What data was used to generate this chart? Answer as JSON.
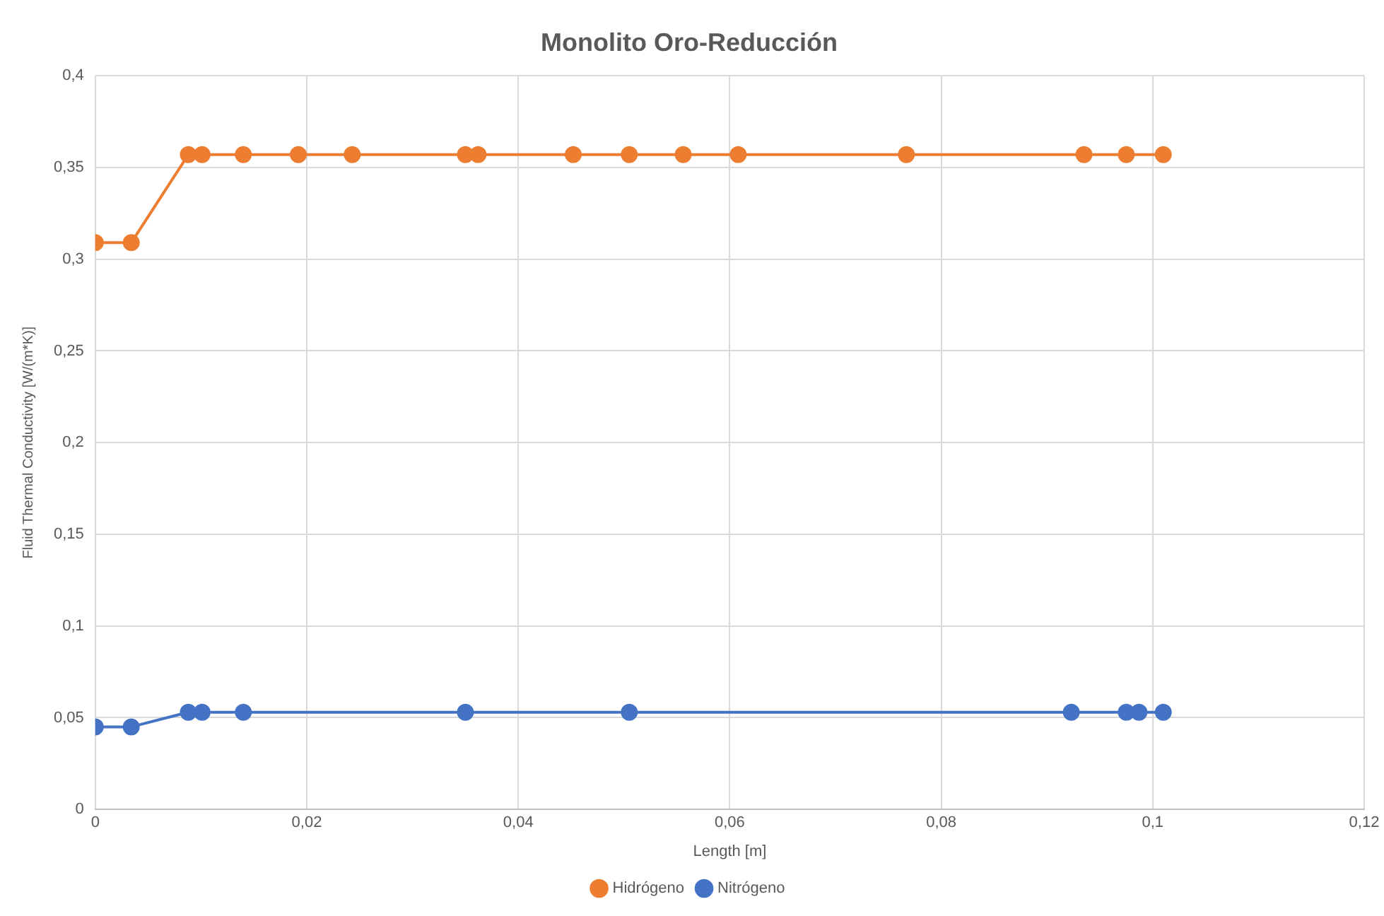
{
  "chart_data": {
    "type": "line",
    "title": "Monolito Oro-Reducción",
    "xlabel": "Length [m]",
    "ylabel": "Fluid Thermal Conductivity [W/(m*K)]",
    "series": [
      {
        "name": "Hidrógeno",
        "color": "#ed7d31",
        "x": [
          0,
          0.0034,
          0.0088,
          0.0101,
          0.014,
          0.0192,
          0.0243,
          0.035,
          0.0362,
          0.0452,
          0.0505,
          0.0556,
          0.0608,
          0.0767,
          0.0935,
          0.0975,
          0.101
        ],
        "values": [
          0.309,
          0.309,
          0.357,
          0.357,
          0.357,
          0.357,
          0.357,
          0.357,
          0.357,
          0.357,
          0.357,
          0.357,
          0.357,
          0.357,
          0.357,
          0.357,
          0.357
        ]
      },
      {
        "name": "Nitrógeno",
        "color": "#4472c4",
        "x": [
          0,
          0.0034,
          0.0088,
          0.0101,
          0.014,
          0.035,
          0.0505,
          0.0923,
          0.0975,
          0.0987,
          0.101
        ],
        "values": [
          0.045,
          0.045,
          0.053,
          0.053,
          0.053,
          0.053,
          0.053,
          0.053,
          0.053,
          0.053,
          0.053
        ]
      }
    ],
    "xlim": [
      0,
      0.12
    ],
    "xticks": [
      0,
      {
        "value": 0.02,
        "label": "0,02"
      },
      {
        "value": 0.04,
        "label": "0,04"
      },
      {
        "value": 0.06,
        "label": "0,06"
      },
      {
        "value": 0.08,
        "label": "0,08"
      },
      {
        "value": 0.1,
        "label": "0,1"
      },
      {
        "value": 0.12,
        "label": "0,12"
      }
    ],
    "ylim": [
      0,
      0.4
    ],
    "yticks": [
      0,
      {
        "value": 0.05,
        "label": "0,05"
      },
      {
        "value": 0.1,
        "label": "0,1"
      },
      {
        "value": 0.15,
        "label": "0,15"
      },
      {
        "value": 0.2,
        "label": "0,2"
      },
      {
        "value": 0.25,
        "label": "0,25"
      },
      {
        "value": 0.3,
        "label": "0,3"
      },
      {
        "value": 0.35,
        "label": "0,35"
      },
      {
        "value": 0.4,
        "label": "0,4"
      }
    ],
    "grid": true,
    "legend": "bottom",
    "marker": "circle",
    "line_style": "solid"
  }
}
